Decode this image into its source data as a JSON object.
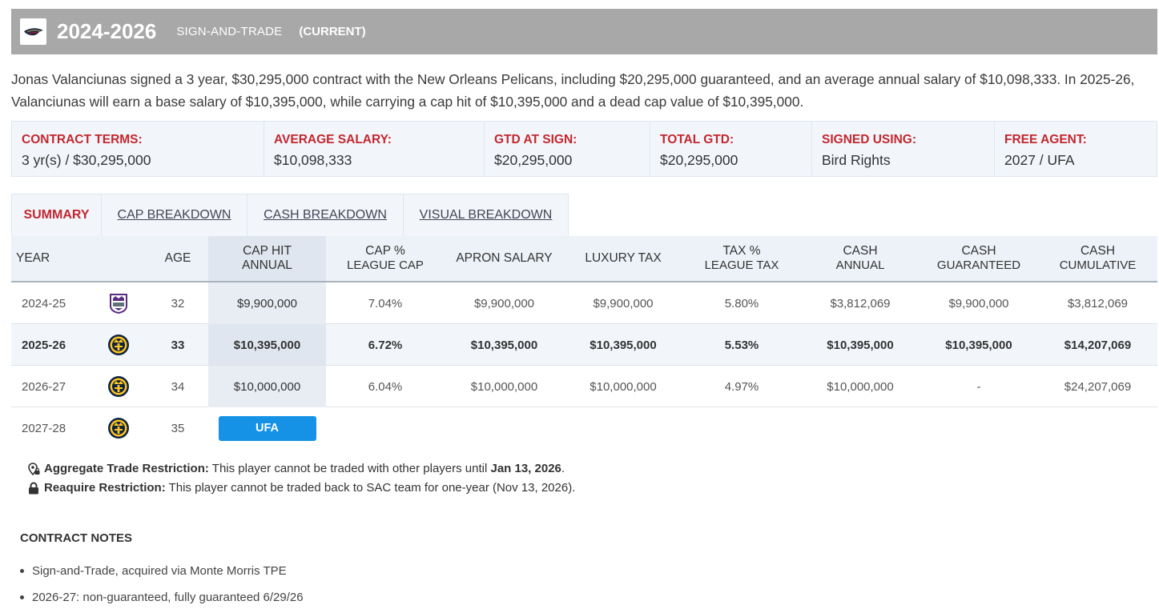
{
  "header": {
    "years": "2024-2026",
    "type": "SIGN-AND-TRADE",
    "status": "(CURRENT)"
  },
  "summary": "Jonas Valanciunas signed a 3 year, $30,295,000 contract with the New Orleans Pelicans, including $20,295,000 guaranteed, and an average annual salary of $10,098,333. In 2025-26, Valanciunas will earn a base salary of $10,395,000, while carrying a cap hit of $10,395,000 and a dead cap value of $10,395,000.",
  "terms": [
    {
      "label": "CONTRACT TERMS:",
      "value": "3 yr(s) / $30,295,000"
    },
    {
      "label": "AVERAGE SALARY:",
      "value": "$10,098,333"
    },
    {
      "label": "GTD AT SIGN:",
      "value": "$20,295,000"
    },
    {
      "label": "TOTAL GTD:",
      "value": "$20,295,000"
    },
    {
      "label": "SIGNED USING:",
      "value": "Bird Rights"
    },
    {
      "label": "FREE AGENT:",
      "value": "2027 / UFA"
    }
  ],
  "tabs": [
    "SUMMARY",
    "CAP BREAKDOWN",
    "CASH BREAKDOWN",
    "VISUAL BREAKDOWN"
  ],
  "table": {
    "headers": {
      "year": "YEAR",
      "age": "AGE",
      "cap_hit": [
        "CAP HIT",
        "ANNUAL"
      ],
      "cap_pct": [
        "CAP %",
        "LEAGUE CAP"
      ],
      "apron": "APRON SALARY",
      "luxury": "LUXURY TAX",
      "tax_pct": [
        "TAX %",
        "LEAGUE TAX"
      ],
      "cash_annual": [
        "CASH",
        "ANNUAL"
      ],
      "cash_gtd": [
        "CASH",
        "GUARANTEED"
      ],
      "cash_cum": [
        "CASH",
        "CUMULATIVE"
      ]
    },
    "rows": [
      {
        "year": "2024-25",
        "team": "kings-logo-icon",
        "age": "32",
        "cap_hit": "$9,900,000",
        "cap_pct": "7.04%",
        "apron": "$9,900,000",
        "luxury": "$9,900,000",
        "tax_pct": "5.80%",
        "cash_annual": "$3,812,069",
        "cash_gtd": "$9,900,000",
        "cash_cum": "$3,812,069"
      },
      {
        "year": "2025-26",
        "team": "nuggets-logo-icon",
        "age": "33",
        "cap_hit": "$10,395,000",
        "cap_pct": "6.72%",
        "apron": "$10,395,000",
        "luxury": "$10,395,000",
        "tax_pct": "5.53%",
        "cash_annual": "$10,395,000",
        "cash_gtd": "$10,395,000",
        "cash_cum": "$14,207,069"
      },
      {
        "year": "2026-27",
        "team": "nuggets-logo-icon",
        "age": "34",
        "cap_hit": "$10,000,000",
        "cap_pct": "6.04%",
        "apron": "$10,000,000",
        "luxury": "$10,000,000",
        "tax_pct": "4.97%",
        "cash_annual": "$10,000,000",
        "cash_gtd": "-",
        "cash_cum": "$24,207,069"
      },
      {
        "year": "2027-28",
        "team": "nuggets-logo-icon",
        "age": "35",
        "badge": "UFA"
      }
    ]
  },
  "restrictions": [
    {
      "icon": "location-lock-icon",
      "label": "Aggregate Trade Restriction:",
      "text": " This player cannot be traded with other players until ",
      "date": "Jan 13, 2026",
      "tail": "."
    },
    {
      "icon": "lock-icon",
      "label": "Reaquire Restriction:",
      "text": " This player cannot be traded back to SAC team for one-year (Nov 13, 2026)."
    }
  ],
  "notes": {
    "title": "CONTRACT NOTES",
    "items": [
      "Sign-and-Trade, acquired via Monte Morris TPE",
      "2026-27: non-guaranteed, fully guaranteed 6/29/26"
    ]
  }
}
